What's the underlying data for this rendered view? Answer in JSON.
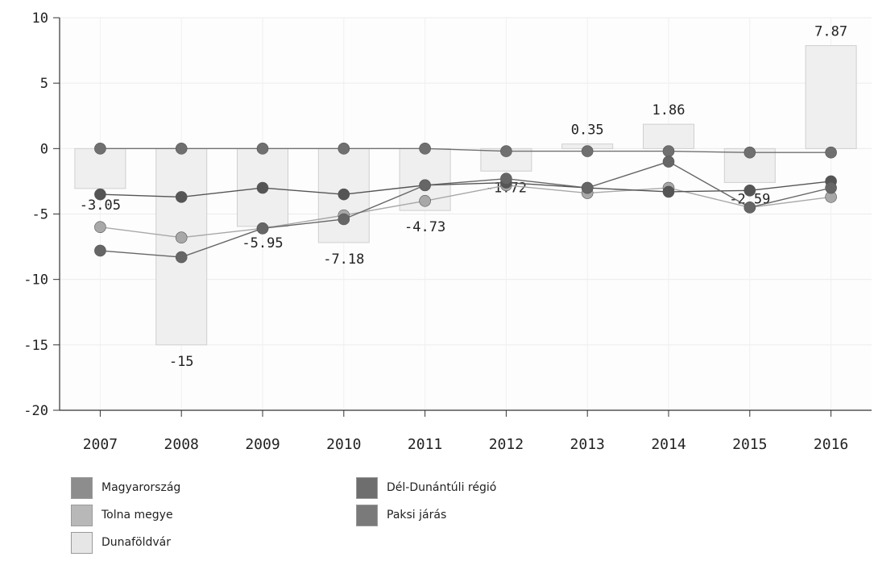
{
  "chart_data": {
    "type": "bar",
    "categories": [
      "2007",
      "2008",
      "2009",
      "2010",
      "2011",
      "2012",
      "2013",
      "2014",
      "2015",
      "2016"
    ],
    "ylim": [
      -20,
      10
    ],
    "yticks": [
      "10",
      "5",
      "0",
      "-5",
      "-10",
      "-15",
      "-20"
    ],
    "grid": true,
    "legend_position": "bottom",
    "bar_series": {
      "name": "Dunaföldvár",
      "color": "#efefef",
      "values": [
        -3.05,
        -15,
        -5.95,
        -7.18,
        -4.73,
        -1.72,
        0.35,
        1.86,
        -2.59,
        7.87
      ],
      "labels": [
        "-3.05",
        "-15",
        "-5.95",
        "-7.18",
        "-4.73",
        "-1.72",
        "0.35",
        "1.86",
        "-2.59",
        "7.87"
      ]
    },
    "series": [
      {
        "name": "Magyarország",
        "type": "line",
        "color": "#707070",
        "values": [
          0,
          0,
          0,
          0,
          0,
          -0.2,
          -0.2,
          -0.2,
          -0.3,
          -0.3
        ]
      },
      {
        "name": "Tolna megye",
        "type": "line",
        "color": "#a8a8a8",
        "values": [
          -6,
          -6.8,
          -6.1,
          -5.1,
          -4,
          -2.8,
          -3.4,
          -3,
          -4.5,
          -3.7
        ]
      },
      {
        "name": "Dél-Dunántúli régió",
        "type": "line",
        "color": "#555555",
        "values": [
          -3.5,
          -3.7,
          -3,
          -3.5,
          -2.8,
          -2.6,
          -3,
          -3.3,
          -3.2,
          -2.5
        ]
      },
      {
        "name": "Paksi járás",
        "type": "line",
        "color": "#666666",
        "values": [
          -7.8,
          -8.3,
          -6.1,
          -5.4,
          -2.8,
          -2.3,
          -3,
          -1,
          -4.5,
          -3
        ]
      }
    ]
  },
  "legend": {
    "items": [
      {
        "label": "Magyarország",
        "color": "#8d8d8d"
      },
      {
        "label": "Tolna megye",
        "color": "#b8b8b8"
      },
      {
        "label": "Dunaföldvár",
        "color": "#e6e6e6"
      },
      {
        "label": "Dél-Dunántúli régió",
        "color": "#6e6e6e"
      },
      {
        "label": "Paksi járás",
        "color": "#7a7a7a"
      }
    ]
  }
}
